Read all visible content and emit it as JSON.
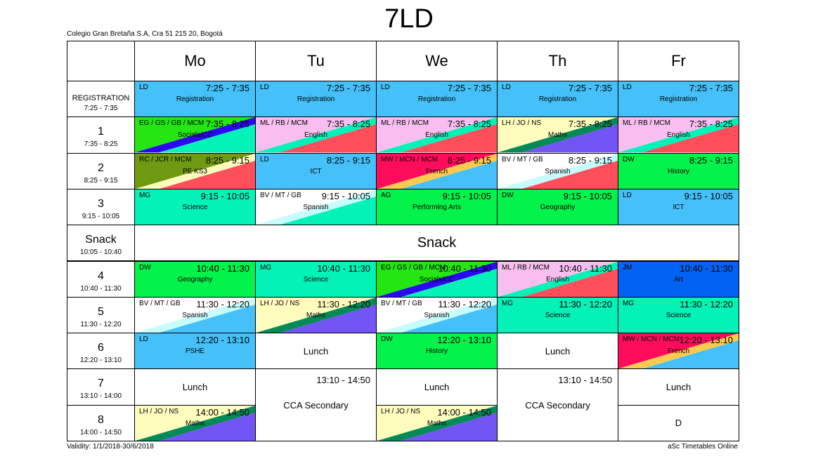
{
  "title": "7LD",
  "school": "Colegio Gran Bretaña S.A, Cra 51 215 20, Bogotá",
  "validity": "Validity: 1/1/2018-30/6/2018",
  "credit": "aSc Timetables Online",
  "days": [
    "Mo",
    "Tu",
    "We",
    "Th",
    "Fr"
  ],
  "periods": [
    {
      "name": "REGISTRATION",
      "time": "7:25 - 7:35"
    },
    {
      "name": "1",
      "time": "7:35 - 8:25"
    },
    {
      "name": "2",
      "time": "8:25 - 9:15"
    },
    {
      "name": "3",
      "time": "9:15 - 10:05"
    },
    {
      "name": "Snack",
      "time": "10:05 - 10:40"
    },
    {
      "name": "4",
      "time": "10:40 - 11:30"
    },
    {
      "name": "5",
      "time": "11:30 - 12:20"
    },
    {
      "name": "6",
      "time": "12:20 - 13:10"
    },
    {
      "name": "7",
      "time": "13:10 - 14:00"
    },
    {
      "name": "8",
      "time": "14:00 - 14:50"
    }
  ],
  "snack_label": "Snack",
  "colors": {
    "blue": "#45C0F8",
    "aqua": "#03F2B8",
    "green": "#03F24B",
    "pink": "#F9BEF0",
    "red": "#FF4F5B",
    "purple": "#7255F4",
    "teal": "#048A57",
    "lemon": "#FDFCBC",
    "lime": "#23E613",
    "navy": "#2E05F4",
    "olive": "#6F9A10",
    "crimson": "#FE0C5C",
    "orange": "#FDCA4E",
    "mint": "#C6FCFB",
    "royal": "#0262F2",
    "white": "#FFFFFF"
  },
  "lessons": [
    {
      "day": 0,
      "row": 0,
      "span": 1,
      "type": "lesson",
      "teachers": "LD",
      "time": "7:25 - 7:35",
      "subject": "Registration",
      "colors": [
        "blue"
      ]
    },
    {
      "day": 1,
      "row": 0,
      "span": 1,
      "type": "lesson",
      "teachers": "LD",
      "time": "7:25 - 7:35",
      "subject": "Registration",
      "colors": [
        "blue"
      ]
    },
    {
      "day": 2,
      "row": 0,
      "span": 1,
      "type": "lesson",
      "teachers": "LD",
      "time": "7:25 - 7:35",
      "subject": "Registration",
      "colors": [
        "blue"
      ]
    },
    {
      "day": 3,
      "row": 0,
      "span": 1,
      "type": "lesson",
      "teachers": "LD",
      "time": "7:25 - 7:35",
      "subject": "Registration",
      "colors": [
        "blue"
      ]
    },
    {
      "day": 4,
      "row": 0,
      "span": 1,
      "type": "lesson",
      "teachers": "LD",
      "time": "7:25 - 7:35",
      "subject": "Registration",
      "colors": [
        "blue"
      ]
    },
    {
      "day": 0,
      "row": 1,
      "span": 1,
      "type": "lesson",
      "teachers": "EG / GS / GB / MCM",
      "time": "7:35 - 8:25",
      "subject": "Socials/CC",
      "colors": [
        "lime",
        "navy",
        "aqua"
      ]
    },
    {
      "day": 1,
      "row": 1,
      "span": 1,
      "type": "lesson",
      "teachers": "ML / RB / MCM",
      "time": "7:35 - 8:25",
      "subject": "English",
      "colors": [
        "pink",
        "aqua",
        "red"
      ]
    },
    {
      "day": 2,
      "row": 1,
      "span": 1,
      "type": "lesson",
      "teachers": "ML / RB / MCM",
      "time": "7:35 - 8:25",
      "subject": "English",
      "colors": [
        "pink",
        "aqua",
        "red"
      ]
    },
    {
      "day": 3,
      "row": 1,
      "span": 1,
      "type": "lesson",
      "teachers": "LH / JO / NS",
      "time": "7:35 - 8:25",
      "subject": "Maths",
      "colors": [
        "lemon",
        "teal",
        "purple"
      ]
    },
    {
      "day": 4,
      "row": 1,
      "span": 1,
      "type": "lesson",
      "teachers": "ML / RB / MCM",
      "time": "7:35 - 8:25",
      "subject": "English",
      "colors": [
        "pink",
        "aqua",
        "red"
      ]
    },
    {
      "day": 0,
      "row": 2,
      "span": 1,
      "type": "lesson",
      "teachers": "RC / JCR / MCM",
      "time": "8:25 - 9:15",
      "subject": "PE KS3",
      "colors": [
        "olive",
        "lemon",
        "red"
      ]
    },
    {
      "day": 1,
      "row": 2,
      "span": 1,
      "type": "lesson",
      "teachers": "LD",
      "time": "8:25 - 9:15",
      "subject": "ICT",
      "colors": [
        "blue"
      ]
    },
    {
      "day": 2,
      "row": 2,
      "span": 1,
      "type": "lesson",
      "teachers": "MW / MCN / MCM",
      "time": "8:25 - 9:15",
      "subject": "French",
      "colors": [
        "crimson",
        "orange",
        "blue"
      ]
    },
    {
      "day": 3,
      "row": 2,
      "span": 1,
      "type": "lesson",
      "teachers": "BV / MT / GB",
      "time": "8:25 - 9:15",
      "subject": "Spanish",
      "colors": [
        "white",
        "mint",
        "red"
      ]
    },
    {
      "day": 4,
      "row": 2,
      "span": 1,
      "type": "lesson",
      "teachers": "DW",
      "time": "8:25 - 9:15",
      "subject": "History",
      "colors": [
        "green"
      ]
    },
    {
      "day": 0,
      "row": 3,
      "span": 1,
      "type": "lesson",
      "teachers": "MG",
      "time": "9:15 - 10:05",
      "subject": "Science",
      "colors": [
        "aqua"
      ]
    },
    {
      "day": 1,
      "row": 3,
      "span": 1,
      "type": "lesson",
      "teachers": "BV / MT / GB",
      "time": "9:15 - 10:05",
      "subject": "Spanish",
      "colors": [
        "white",
        "mint",
        "aqua"
      ]
    },
    {
      "day": 2,
      "row": 3,
      "span": 1,
      "type": "lesson",
      "teachers": "AG",
      "time": "9:15 - 10:05",
      "subject": "Performing Arts",
      "colors": [
        "green"
      ]
    },
    {
      "day": 3,
      "row": 3,
      "span": 1,
      "type": "lesson",
      "teachers": "DW",
      "time": "9:15 - 10:05",
      "subject": "Geography",
      "colors": [
        "green"
      ]
    },
    {
      "day": 4,
      "row": 3,
      "span": 1,
      "type": "lesson",
      "teachers": "LD",
      "time": "9:15 - 10:05",
      "subject": "ICT",
      "colors": [
        "blue"
      ]
    },
    {
      "day": 0,
      "row": 5,
      "span": 1,
      "type": "lesson",
      "teachers": "DW",
      "time": "10:40 - 11:30",
      "subject": "Geography",
      "colors": [
        "green"
      ]
    },
    {
      "day": 1,
      "row": 5,
      "span": 1,
      "type": "lesson",
      "teachers": "MG",
      "time": "10:40 - 11:30",
      "subject": "Science",
      "colors": [
        "aqua"
      ]
    },
    {
      "day": 2,
      "row": 5,
      "span": 1,
      "type": "lesson",
      "teachers": "EG / GS / GB / MCM",
      "time": "10:40 - 11:30",
      "subject": "Socials/CC",
      "colors": [
        "lime",
        "navy",
        "aqua"
      ]
    },
    {
      "day": 3,
      "row": 5,
      "span": 1,
      "type": "lesson",
      "teachers": "ML / RB / MCM",
      "time": "10:40 - 11:30",
      "subject": "English",
      "colors": [
        "pink",
        "aqua",
        "red"
      ]
    },
    {
      "day": 4,
      "row": 5,
      "span": 1,
      "type": "lesson",
      "teachers": "JM",
      "time": "10:40 - 11:30",
      "subject": "Art",
      "colors": [
        "royal"
      ]
    },
    {
      "day": 0,
      "row": 6,
      "span": 1,
      "type": "lesson",
      "teachers": "BV / MT / GB",
      "time": "11:30 - 12:20",
      "subject": "Spanish",
      "colors": [
        "white",
        "mint",
        "blue"
      ]
    },
    {
      "day": 1,
      "row": 6,
      "span": 1,
      "type": "lesson",
      "teachers": "LH / JO / NS",
      "time": "11:30 - 12:20",
      "subject": "Maths",
      "colors": [
        "lemon",
        "teal",
        "purple"
      ]
    },
    {
      "day": 2,
      "row": 6,
      "span": 1,
      "type": "lesson",
      "teachers": "BV / MT / GB",
      "time": "11:30 - 12:20",
      "subject": "Spanish",
      "colors": [
        "white",
        "mint",
        "blue"
      ]
    },
    {
      "day": 3,
      "row": 6,
      "span": 1,
      "type": "lesson",
      "teachers": "MG",
      "time": "11:30 - 12:20",
      "subject": "Science",
      "colors": [
        "aqua"
      ]
    },
    {
      "day": 4,
      "row": 6,
      "span": 1,
      "type": "lesson",
      "teachers": "MG",
      "time": "11:30 - 12:20",
      "subject": "Science",
      "colors": [
        "aqua"
      ]
    },
    {
      "day": 0,
      "row": 7,
      "span": 1,
      "type": "lesson",
      "teachers": "LD",
      "time": "12:20 - 13:10",
      "subject": "PSHE",
      "colors": [
        "blue"
      ]
    },
    {
      "day": 1,
      "row": 7,
      "span": 1,
      "type": "plain",
      "subject": "Lunch"
    },
    {
      "day": 2,
      "row": 7,
      "span": 1,
      "type": "lesson",
      "teachers": "DW",
      "time": "12:20 - 13:10",
      "subject": "History",
      "colors": [
        "green"
      ]
    },
    {
      "day": 3,
      "row": 7,
      "span": 1,
      "type": "plain",
      "subject": "Lunch"
    },
    {
      "day": 4,
      "row": 7,
      "span": 1,
      "type": "lesson",
      "teachers": "MW / MCN / MCM",
      "time": "12:20 - 13:10",
      "subject": "French",
      "colors": [
        "crimson",
        "orange",
        "blue"
      ]
    },
    {
      "day": 0,
      "row": 8,
      "span": 1,
      "type": "plain",
      "subject": "Lunch"
    },
    {
      "day": 1,
      "row": 8,
      "span": 2,
      "type": "cca",
      "time": "13:10 - 14:50",
      "subject": "CCA Secondary"
    },
    {
      "day": 2,
      "row": 8,
      "span": 1,
      "type": "plain",
      "subject": "Lunch"
    },
    {
      "day": 3,
      "row": 8,
      "span": 2,
      "type": "cca",
      "time": "13:10 - 14:50",
      "subject": "CCA Secondary"
    },
    {
      "day": 4,
      "row": 8,
      "span": 1,
      "type": "plain",
      "subject": "Lunch"
    },
    {
      "day": 0,
      "row": 9,
      "span": 1,
      "type": "lesson",
      "teachers": "LH / JO / NS",
      "time": "14:00 - 14:50",
      "subject": "Maths",
      "colors": [
        "lemon",
        "teal",
        "purple"
      ]
    },
    {
      "day": 2,
      "row": 9,
      "span": 1,
      "type": "lesson",
      "teachers": "LH / JO / NS",
      "time": "14:00 - 14:50",
      "subject": "Maths",
      "colors": [
        "lemon",
        "teal",
        "purple"
      ]
    },
    {
      "day": 4,
      "row": 9,
      "span": 1,
      "type": "plain",
      "subject": "D"
    }
  ]
}
